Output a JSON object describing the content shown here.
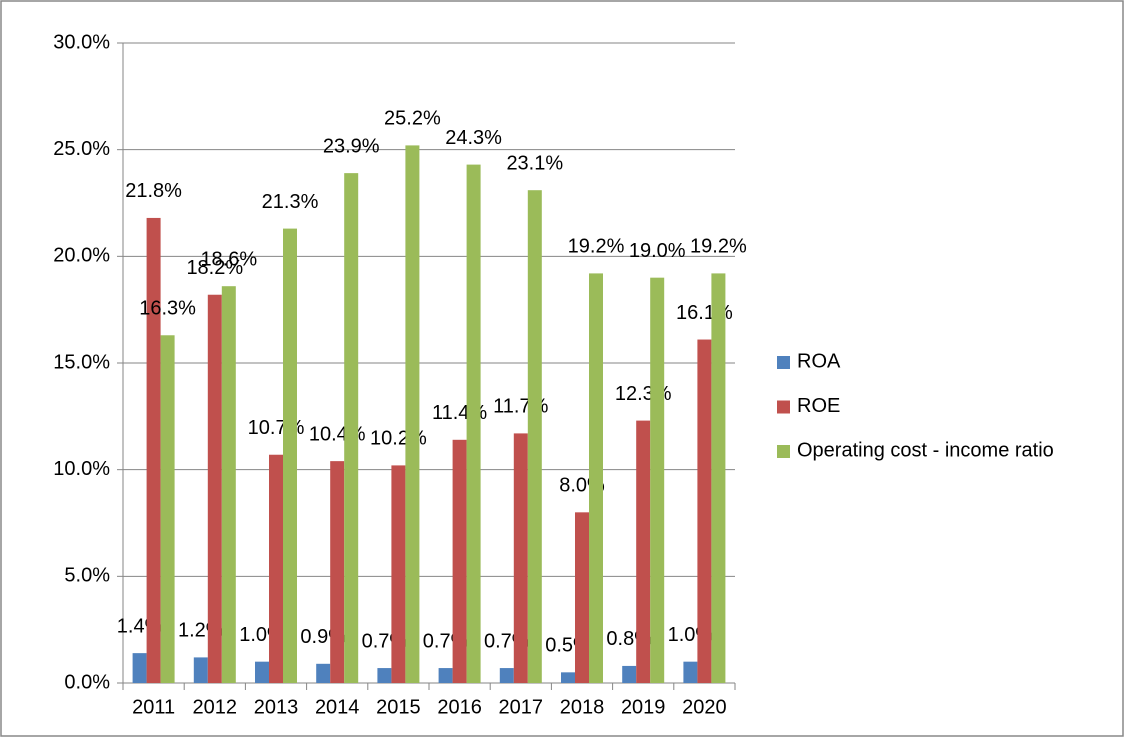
{
  "chart_data": {
    "type": "bar",
    "categories": [
      "2011",
      "2012",
      "2013",
      "2014",
      "2015",
      "2016",
      "2017",
      "2018",
      "2019",
      "2020"
    ],
    "series": [
      {
        "name": "ROA",
        "color": "#4f81bd",
        "values": [
          1.4,
          1.2,
          1.0,
          0.9,
          0.7,
          0.7,
          0.7,
          0.5,
          0.8,
          1.0
        ],
        "value_labels": [
          "1.4%",
          "1.2%",
          "1.0%",
          "0.9%",
          "0.7%",
          "0.7%",
          "0.7%",
          "0.5%",
          "0.8%",
          "1.0%"
        ]
      },
      {
        "name": "ROE",
        "color": "#c0504d",
        "values": [
          21.8,
          18.2,
          10.7,
          10.4,
          10.2,
          11.4,
          11.7,
          8.0,
          12.3,
          16.1
        ],
        "value_labels": [
          "21.8%",
          "18.2%",
          "10.7%",
          "10.4%",
          "10.2%",
          "11.4%",
          "11.7%",
          "8.0%",
          "12.3%",
          "16.1%"
        ]
      },
      {
        "name": "Operating cost - income ratio",
        "color": "#9bbb59",
        "values": [
          16.3,
          18.6,
          21.3,
          23.9,
          25.2,
          24.3,
          23.1,
          19.2,
          19.0,
          19.2
        ],
        "value_labels": [
          "16.3%",
          "18.6%",
          "21.3%",
          "23.9%",
          "25.2%",
          "24.3%",
          "23.1%",
          "19.2%",
          "19.0%",
          "19.2%"
        ]
      }
    ],
    "ylim": [
      0,
      30
    ],
    "yticks": [
      {
        "value": 0,
        "label": "0.0%"
      },
      {
        "value": 5,
        "label": "5.0%"
      },
      {
        "value": 10,
        "label": "10.0%"
      },
      {
        "value": 15,
        "label": "15.0%"
      },
      {
        "value": 20,
        "label": "20.0%"
      },
      {
        "value": 25,
        "label": "25.0%"
      },
      {
        "value": 30,
        "label": "30.0%"
      }
    ],
    "grid": true,
    "legend": "right"
  }
}
